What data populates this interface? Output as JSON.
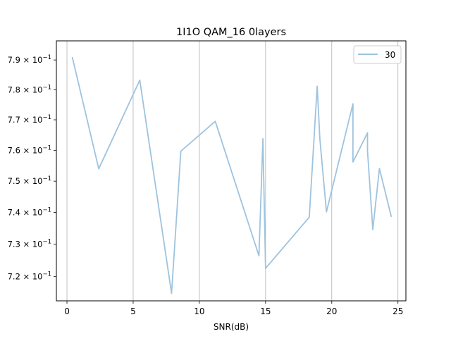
{
  "chart_data": {
    "type": "line",
    "title": "1I1O QAM_16 0layers",
    "xlabel": "SNR(dB)",
    "ylabel": "",
    "xlim": [
      -0.8,
      25.6
    ],
    "ylim": [
      0.7125,
      0.7965
    ],
    "y_scale": "log",
    "x_ticks": [
      0,
      5,
      10,
      15,
      20,
      25
    ],
    "x_tick_labels": [
      "0",
      "5",
      "10",
      "15",
      "20",
      "25"
    ],
    "y_ticks": [
      0.72,
      0.73,
      0.74,
      0.75,
      0.76,
      0.77,
      0.78,
      0.79
    ],
    "y_tick_labels": [
      {
        "mant": "7.2",
        "exp": "−1"
      },
      {
        "mant": "7.3",
        "exp": "−1"
      },
      {
        "mant": "7.4",
        "exp": "−1"
      },
      {
        "mant": "7.5",
        "exp": "−1"
      },
      {
        "mant": "7.6",
        "exp": "−1"
      },
      {
        "mant": "7.7",
        "exp": "−1"
      },
      {
        "mant": "7.8",
        "exp": "−1"
      },
      {
        "mant": "7.9",
        "exp": "−1"
      }
    ],
    "grid": "x-only",
    "legend_position": "top-right",
    "series": [
      {
        "name": "30",
        "color": "#9ec3de",
        "x": [
          0.4,
          2.4,
          5.5,
          7.9,
          8.6,
          11.2,
          14.5,
          14.8,
          15.0,
          18.3,
          18.9,
          19.1,
          19.6,
          21.6,
          21.6,
          22.7,
          22.7,
          23.1,
          23.6,
          24.5
        ],
        "y": [
          0.791,
          0.754,
          0.7832,
          0.7148,
          0.7597,
          0.7695,
          0.7264,
          0.7638,
          0.7225,
          0.7385,
          0.7812,
          0.7638,
          0.7402,
          0.7753,
          0.7562,
          0.7657,
          0.7598,
          0.7346,
          0.7541,
          0.7386
        ]
      }
    ]
  }
}
